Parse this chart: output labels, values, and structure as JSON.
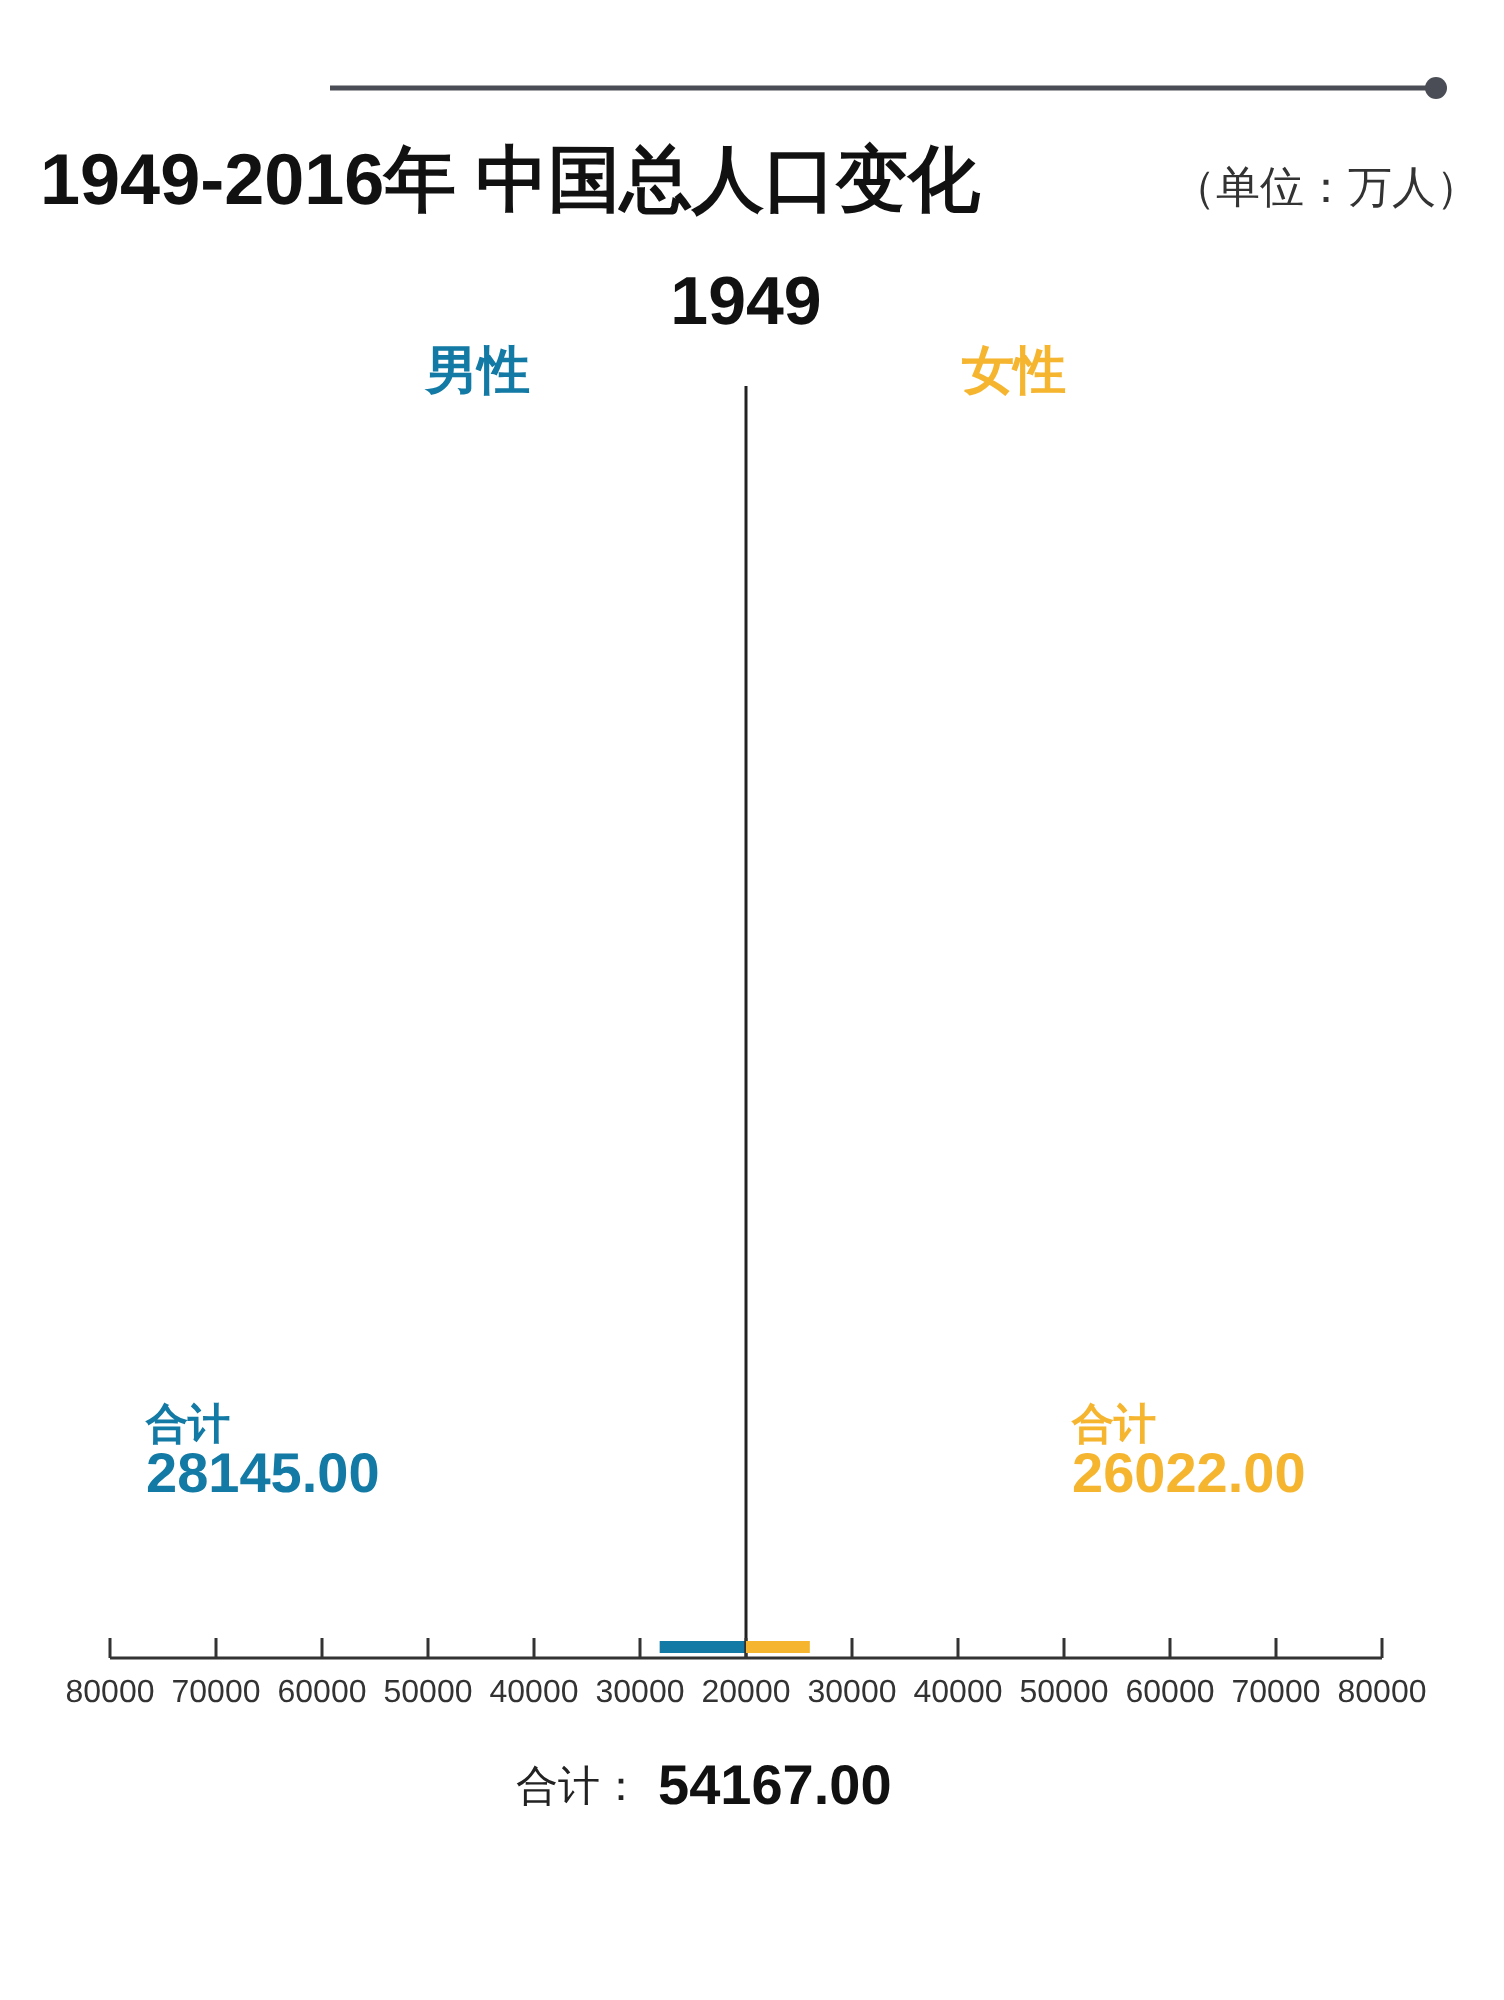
{
  "chart_data": [
    {
      "type": "bar",
      "orientation": "horizontal",
      "title": "1949-2016年 中国总人口变化",
      "categories": [
        null
      ],
      "series": [
        {
          "name": "男性",
          "color": "#127aa4",
          "values": [
            28145
          ]
        }
      ],
      "xlim": [
        80000,
        20000
      ],
      "xticks": [
        80000,
        70000,
        60000,
        50000,
        40000,
        30000,
        20000
      ],
      "tick_labels": "x",
      "annotations": [
        "1949",
        "合计",
        "28145.00"
      ]
    },
    {
      "type": "bar",
      "orientation": "horizontal",
      "subtitle": "（单位：万人）",
      "categories": [
        null
      ],
      "series": [
        {
          "name": "女性",
          "color": "#f6b52f",
          "values": [
            26022
          ]
        }
      ],
      "xlim": [
        20000,
        80000
      ],
      "xticks": [
        30000,
        40000,
        50000,
        60000,
        70000,
        80000
      ],
      "tick_labels": "x",
      "annotations": [
        "合计",
        "26022.00",
        "合计：",
        "54167.00"
      ]
    }
  ]
}
